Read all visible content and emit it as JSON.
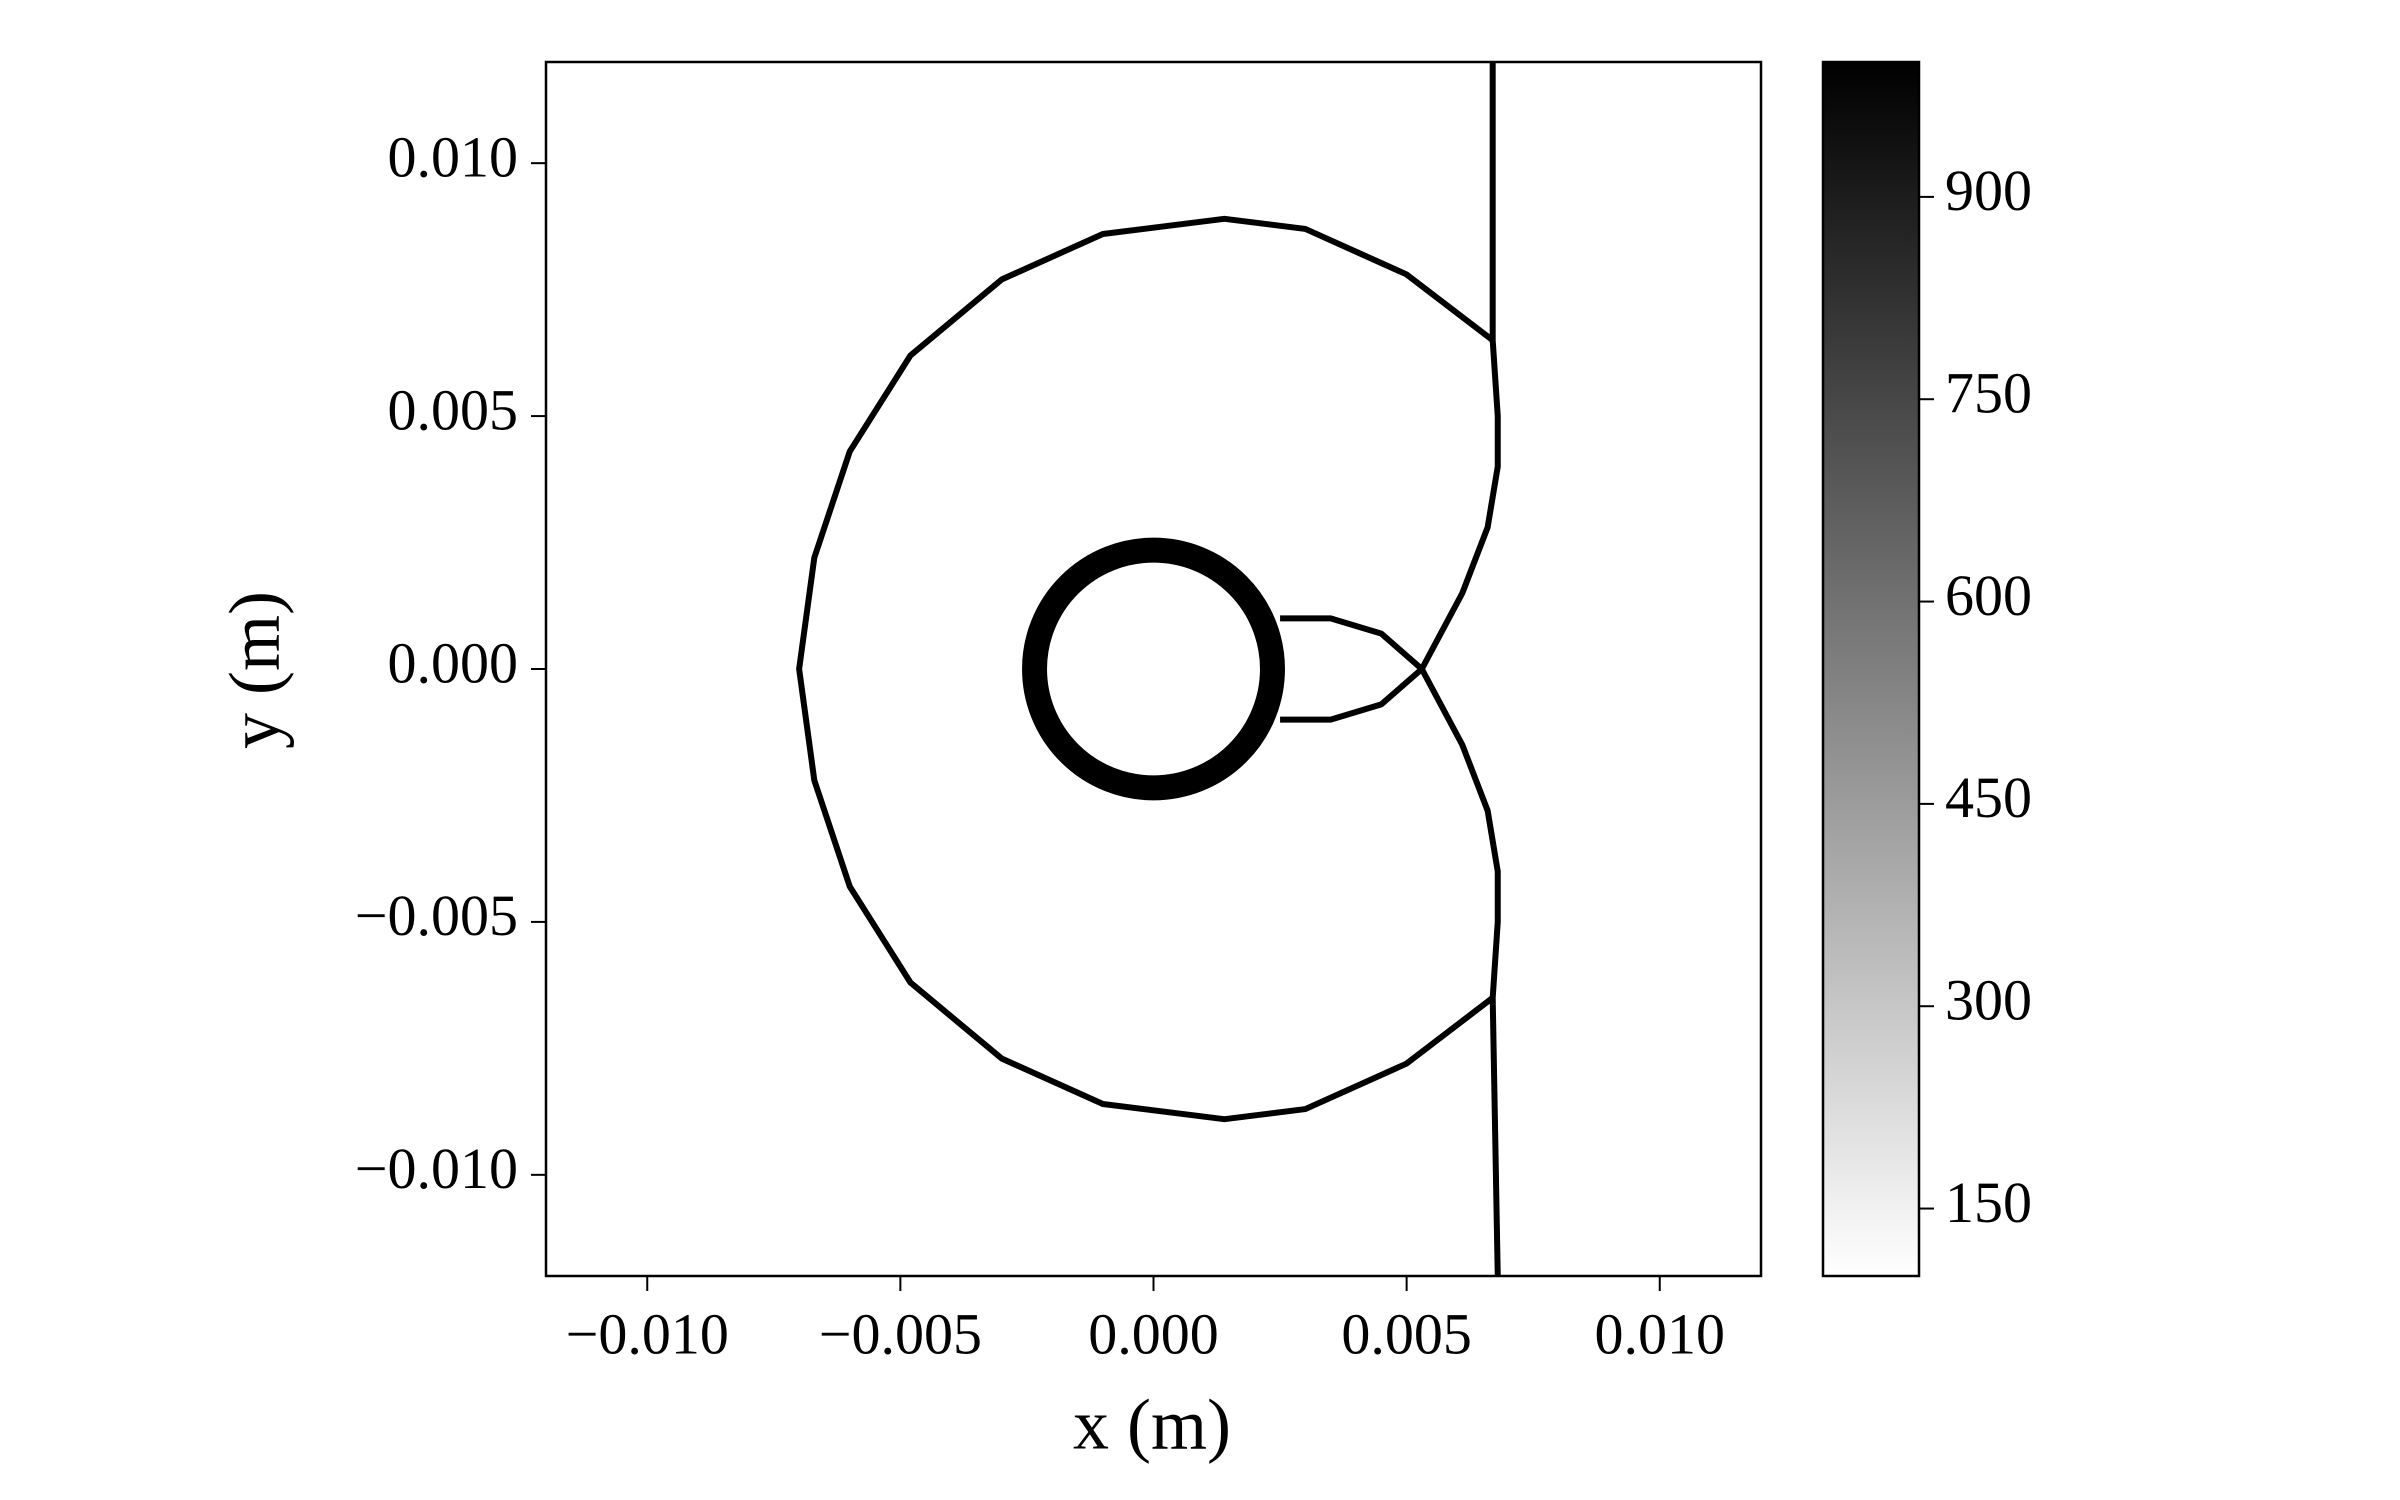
{
  "chart_data": {
    "type": "heatmap",
    "xlabel": "x (m)",
    "ylabel": "y (m)",
    "xlim": [
      -0.012,
      0.012
    ],
    "ylim": [
      -0.012,
      0.012
    ],
    "xticks": [
      {
        "value": -0.01,
        "label": "−0.010"
      },
      {
        "value": -0.005,
        "label": "−0.005"
      },
      {
        "value": 0,
        "label": "0.000"
      },
      {
        "value": 0.005,
        "label": "0.005"
      },
      {
        "value": 0.01,
        "label": "0.010"
      }
    ],
    "yticks": [
      {
        "value": -0.01,
        "label": "−0.010"
      },
      {
        "value": -0.005,
        "label": "−0.005"
      },
      {
        "value": 0,
        "label": "0.000"
      },
      {
        "value": 0.005,
        "label": "0.005"
      },
      {
        "value": 0.01,
        "label": "0.010"
      }
    ],
    "color": "#000000",
    "features": [
      {
        "x": [
          0.0067,
          0.0067,
          0.0068,
          0.0068,
          0.0066,
          0.0061,
          0.0053,
          0.0061,
          0.0066,
          0.0068,
          0.0068,
          0.0067,
          0.0068
        ],
        "y": [
          0.012,
          0.0065,
          0.005,
          0.004,
          0.0028,
          0.0015,
          0.0,
          -0.0015,
          -0.0028,
          -0.004,
          -0.005,
          -0.0065,
          -0.012
        ]
      },
      {
        "x": [
          0.0067,
          0.005,
          0.003,
          0.0014,
          -0.001,
          -0.003,
          -0.0048,
          -0.006,
          -0.0067,
          -0.007,
          -0.0067,
          -0.006,
          -0.0048,
          -0.003,
          -0.001,
          0.0014,
          0.003,
          0.005,
          0.0067
        ],
        "y": [
          0.0065,
          0.0078,
          0.0087,
          0.0089,
          0.0086,
          0.0077,
          0.0062,
          0.0043,
          0.0022,
          0.0,
          -0.0022,
          -0.0043,
          -0.0062,
          -0.0077,
          -0.0086,
          -0.0089,
          -0.0087,
          -0.0078,
          -0.0065
        ]
      },
      {
        "x": [
          0.0025,
          0.0035,
          0.0045,
          0.0053,
          0.0045,
          0.0035,
          0.0025
        ],
        "y": [
          0.001,
          0.001,
          0.0007,
          0.0,
          -0.0007,
          -0.001,
          -0.001
        ]
      }
    ],
    "circles": [
      {
        "cx": 0,
        "cy": 0,
        "r": 0.00235
      }
    ],
    "colorbar": {
      "clim": [
        100,
        1000
      ],
      "ticks": [
        150,
        300,
        450,
        600,
        750,
        900
      ],
      "colors": [
        "#ffffff",
        "#000000"
      ]
    }
  }
}
